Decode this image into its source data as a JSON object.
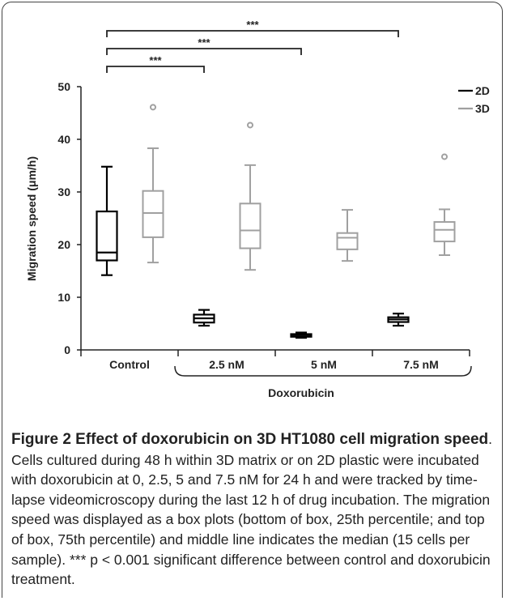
{
  "chart_data": {
    "type": "box",
    "ylabel": "Migration speed (μm/h)",
    "xlabel": "Doxorubicin",
    "ylim": [
      0,
      50
    ],
    "yticks": [
      0,
      10,
      20,
      30,
      40,
      50
    ],
    "categories": [
      "Control",
      "2.5 nM",
      "5 nM",
      "7.5 nM"
    ],
    "legend_position": "top-right",
    "series": [
      {
        "name": "2D",
        "color": "#000000",
        "boxes": [
          {
            "min": 14.2,
            "q1": 17.0,
            "median": 18.5,
            "q3": 26.3,
            "max": 34.8,
            "outliers": []
          },
          {
            "min": 4.6,
            "q1": 5.2,
            "median": 6.0,
            "q3": 6.7,
            "max": 7.6,
            "outliers": []
          },
          {
            "min": 2.3,
            "q1": 2.5,
            "median": 2.8,
            "q3": 3.0,
            "max": 3.3,
            "outliers": []
          },
          {
            "min": 4.6,
            "q1": 5.3,
            "median": 5.8,
            "q3": 6.2,
            "max": 6.9,
            "outliers": []
          }
        ]
      },
      {
        "name": "3D",
        "color": "#a0a0a0",
        "boxes": [
          {
            "min": 16.6,
            "q1": 21.4,
            "median": 26.0,
            "q3": 30.2,
            "max": 38.3,
            "outliers": [
              46.1
            ]
          },
          {
            "min": 15.2,
            "q1": 19.3,
            "median": 22.7,
            "q3": 27.8,
            "max": 35.1,
            "outliers": [
              42.7
            ]
          },
          {
            "min": 16.9,
            "q1": 19.1,
            "median": 21.3,
            "q3": 22.2,
            "max": 26.6,
            "outliers": []
          },
          {
            "min": 18.0,
            "q1": 20.6,
            "median": 22.8,
            "q3": 24.3,
            "max": 26.7,
            "outliers": [
              36.7
            ]
          }
        ]
      }
    ],
    "significance": [
      {
        "from": "Control",
        "to": "2.5 nM",
        "label": "***"
      },
      {
        "from": "Control",
        "to": "5 nM",
        "label": "***"
      },
      {
        "from": "Control",
        "to": "7.5 nM",
        "label": "***"
      }
    ]
  },
  "caption": {
    "bold": "Figure 2 Effect of doxorubicin on 3D HT1080 cell migration speed",
    "text": ". Cells cultured during 48 h within 3D matrix or on 2D plastic were incubated with doxorubicin at 0, 2.5, 5 and 7.5 nM for 24 h and were tracked by time-lapse videomicroscopy during the last 12 h of drug incubation. The migration speed was displayed as a box plots (bottom of box, 25th percentile; and top of box, 75th percentile) and middle line indicates the median (15 cells per sample). *** p < 0.001 significant difference between control and doxorubicin treatment."
  }
}
